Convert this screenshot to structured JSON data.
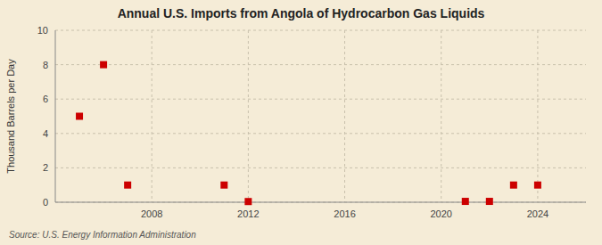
{
  "chart_data": {
    "type": "scatter",
    "title": "Annual U.S. Imports from Angola of Hydrocarbon Gas Liquids",
    "y_label": "Thousand Barrels per Day",
    "annotation": "Source: U.S. Energy Information Administration",
    "x": [
      2005,
      2006,
      2007,
      2011,
      2012,
      2021,
      2022,
      2023,
      2024
    ],
    "values": [
      5,
      8,
      1,
      1,
      0.04,
      0.05,
      0.05,
      1,
      1
    ],
    "xlim": [
      2004,
      2026
    ],
    "ylim": [
      0,
      10
    ],
    "xticks": [
      2008,
      2012,
      2016,
      2020,
      2024
    ],
    "yticks": [
      0,
      2,
      4,
      6,
      8,
      10
    ],
    "color": "#cc0000",
    "marker": "square",
    "grid": true
  }
}
